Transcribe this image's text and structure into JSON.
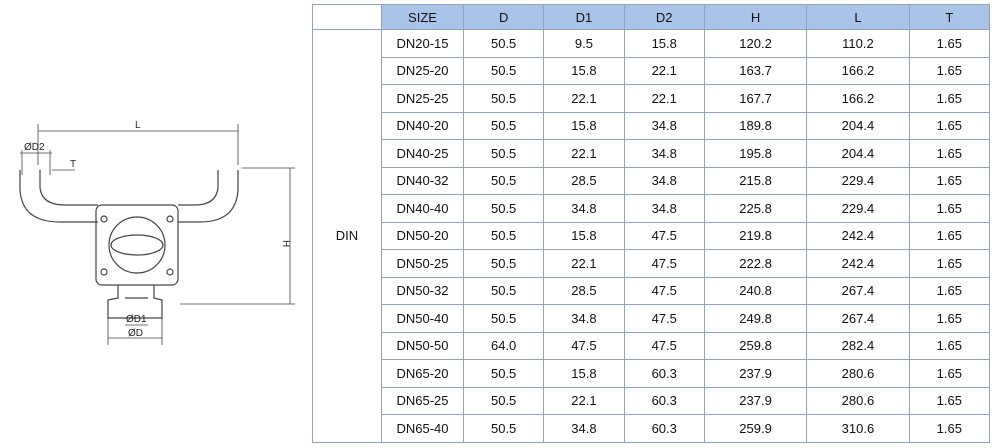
{
  "diagram": {
    "labels": {
      "l": "L",
      "d2": "ØD2",
      "t": "T",
      "h": "H",
      "d1": "ØD1",
      "d": "ØD"
    }
  },
  "table": {
    "group": "DIN",
    "header": [
      "SIZE",
      "D",
      "D1",
      "D2",
      "H",
      "L",
      "T"
    ],
    "rows": [
      [
        "DN20-15",
        "50.5",
        "9.5",
        "15.8",
        "120.2",
        "110.2",
        "1.65"
      ],
      [
        "DN25-20",
        "50.5",
        "15.8",
        "22.1",
        "163.7",
        "166.2",
        "1.65"
      ],
      [
        "DN25-25",
        "50.5",
        "22.1",
        "22.1",
        "167.7",
        "166.2",
        "1.65"
      ],
      [
        "DN40-20",
        "50.5",
        "15.8",
        "34.8",
        "189.8",
        "204.4",
        "1.65"
      ],
      [
        "DN40-25",
        "50.5",
        "22.1",
        "34.8",
        "195.8",
        "204.4",
        "1.65"
      ],
      [
        "DN40-32",
        "50.5",
        "28.5",
        "34.8",
        "215.8",
        "229.4",
        "1.65"
      ],
      [
        "DN40-40",
        "50.5",
        "34.8",
        "34.8",
        "225.8",
        "229.4",
        "1.65"
      ],
      [
        "DN50-20",
        "50.5",
        "15.8",
        "47.5",
        "219.8",
        "242.4",
        "1.65"
      ],
      [
        "DN50-25",
        "50.5",
        "22.1",
        "47.5",
        "222.8",
        "242.4",
        "1.65"
      ],
      [
        "DN50-32",
        "50.5",
        "28.5",
        "47.5",
        "240.8",
        "267.4",
        "1.65"
      ],
      [
        "DN50-40",
        "50.5",
        "34.8",
        "47.5",
        "249.8",
        "267.4",
        "1.65"
      ],
      [
        "DN50-50",
        "64.0",
        "47.5",
        "47.5",
        "259.8",
        "282.4",
        "1.65"
      ],
      [
        "DN65-20",
        "50.5",
        "15.8",
        "60.3",
        "237.9",
        "280.6",
        "1.65"
      ],
      [
        "DN65-25",
        "50.5",
        "22.1",
        "60.3",
        "237.9",
        "280.6",
        "1.65"
      ],
      [
        "DN65-40",
        "50.5",
        "34.8",
        "60.3",
        "259.9",
        "310.6",
        "1.65"
      ]
    ]
  }
}
